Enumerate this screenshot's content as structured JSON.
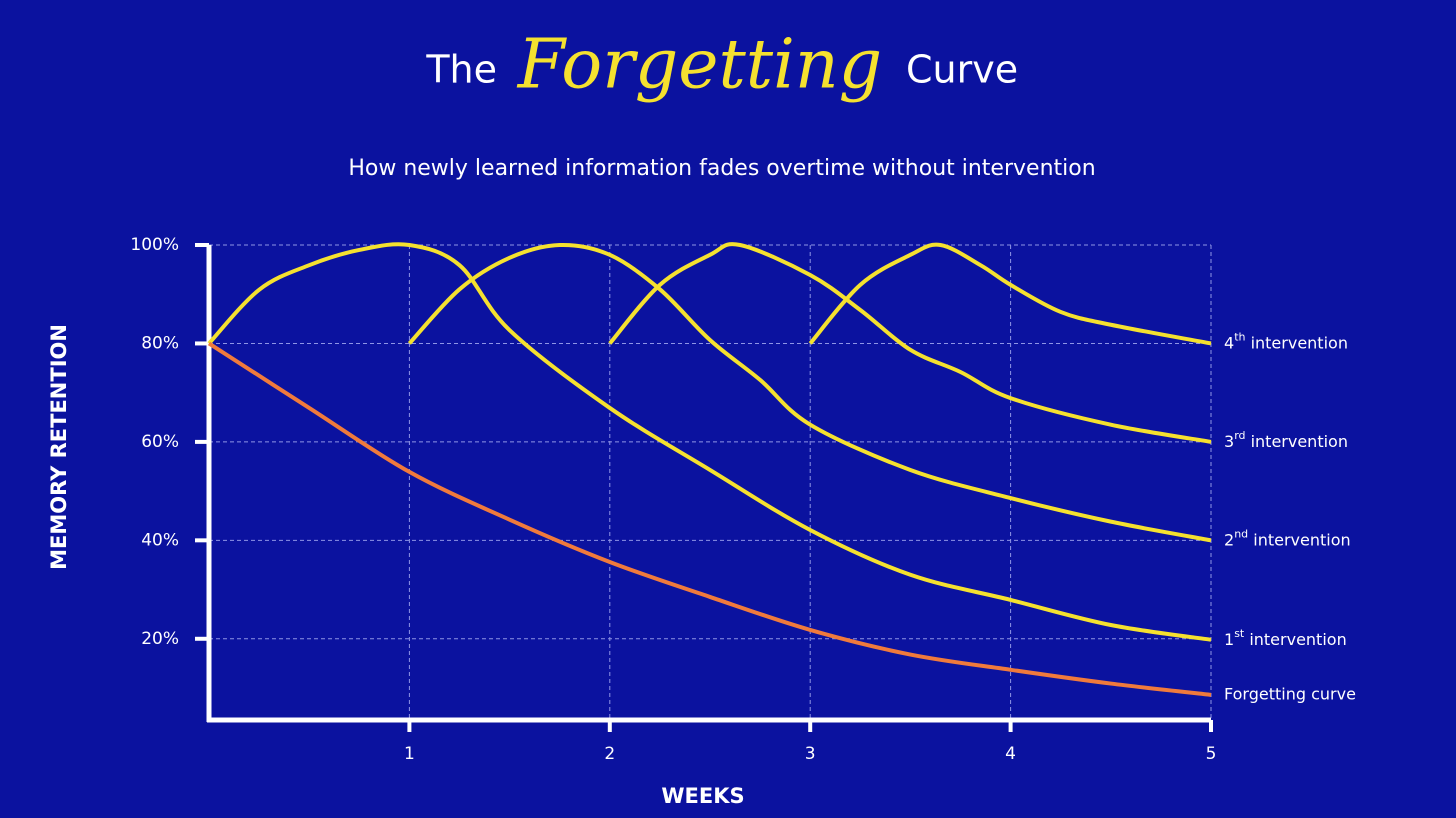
{
  "chart_data": {
    "type": "line",
    "title_parts": [
      "The",
      "Forgetting",
      "Curve"
    ],
    "subtitle": "How newly learned information fades overtime without intervention",
    "y_label": "MEMORY RETENTION",
    "x_label": "WEEKS",
    "xlim": [
      0,
      5
    ],
    "xticks": [
      1,
      2,
      3,
      4,
      5
    ],
    "ylim": [
      3.5,
      100
    ],
    "yticks": [
      {
        "value": 20,
        "label": "20%"
      },
      {
        "value": 40,
        "label": "40%"
      },
      {
        "value": 60,
        "label": "60%"
      },
      {
        "value": 80,
        "label": "80%"
      },
      {
        "value": 100,
        "label": "100%"
      }
    ],
    "grid": true,
    "series": [
      {
        "name": "4th intervention",
        "color": "#f5e12f",
        "x": [
          3,
          3.25,
          3.5,
          3.65,
          3.85,
          4,
          4.25,
          4.5,
          5
        ],
        "values": [
          80,
          91.9,
          98,
          100,
          95.9,
          91.9,
          86.4,
          83.8,
          80
        ]
      },
      {
        "name": "3rd intervention",
        "color": "#f5e12f",
        "x": [
          2,
          2.25,
          2.5,
          2.65,
          3,
          3.25,
          3.5,
          3.75,
          4,
          4.5,
          5
        ],
        "values": [
          80,
          91.9,
          98,
          100,
          93.9,
          86.8,
          78.7,
          74.2,
          68.9,
          63.5,
          60
        ]
      },
      {
        "name": "2nd intervention",
        "color": "#f5e12f",
        "x": [
          1,
          1.25,
          1.5,
          1.75,
          2,
          2.25,
          2.5,
          2.75,
          3,
          3.5,
          4,
          4.5,
          5
        ],
        "values": [
          80,
          91,
          97.4,
          100,
          98,
          91,
          80.7,
          72.6,
          63.5,
          54.3,
          48.6,
          43.8,
          40
        ]
      },
      {
        "name": "1st intervention",
        "color": "#f5e12f",
        "x": [
          0,
          0.25,
          0.5,
          0.75,
          1,
          1.25,
          1.5,
          2,
          2.5,
          3,
          3.5,
          4,
          4.5,
          5
        ],
        "values": [
          80,
          90.9,
          95.9,
          99,
          100,
          95.9,
          82.7,
          66.9,
          54.3,
          42.1,
          33,
          27.9,
          22.8,
          19.8
        ]
      },
      {
        "name": "Forgetting curve",
        "color": "#f07a3c",
        "x": [
          0,
          0.5,
          1,
          1.5,
          2,
          2.5,
          3,
          3.5,
          4,
          4.5,
          5
        ],
        "values": [
          80,
          66.9,
          53.9,
          44.2,
          35.6,
          28.5,
          21.8,
          16.8,
          13.7,
          10.9,
          8.6
        ]
      }
    ]
  }
}
